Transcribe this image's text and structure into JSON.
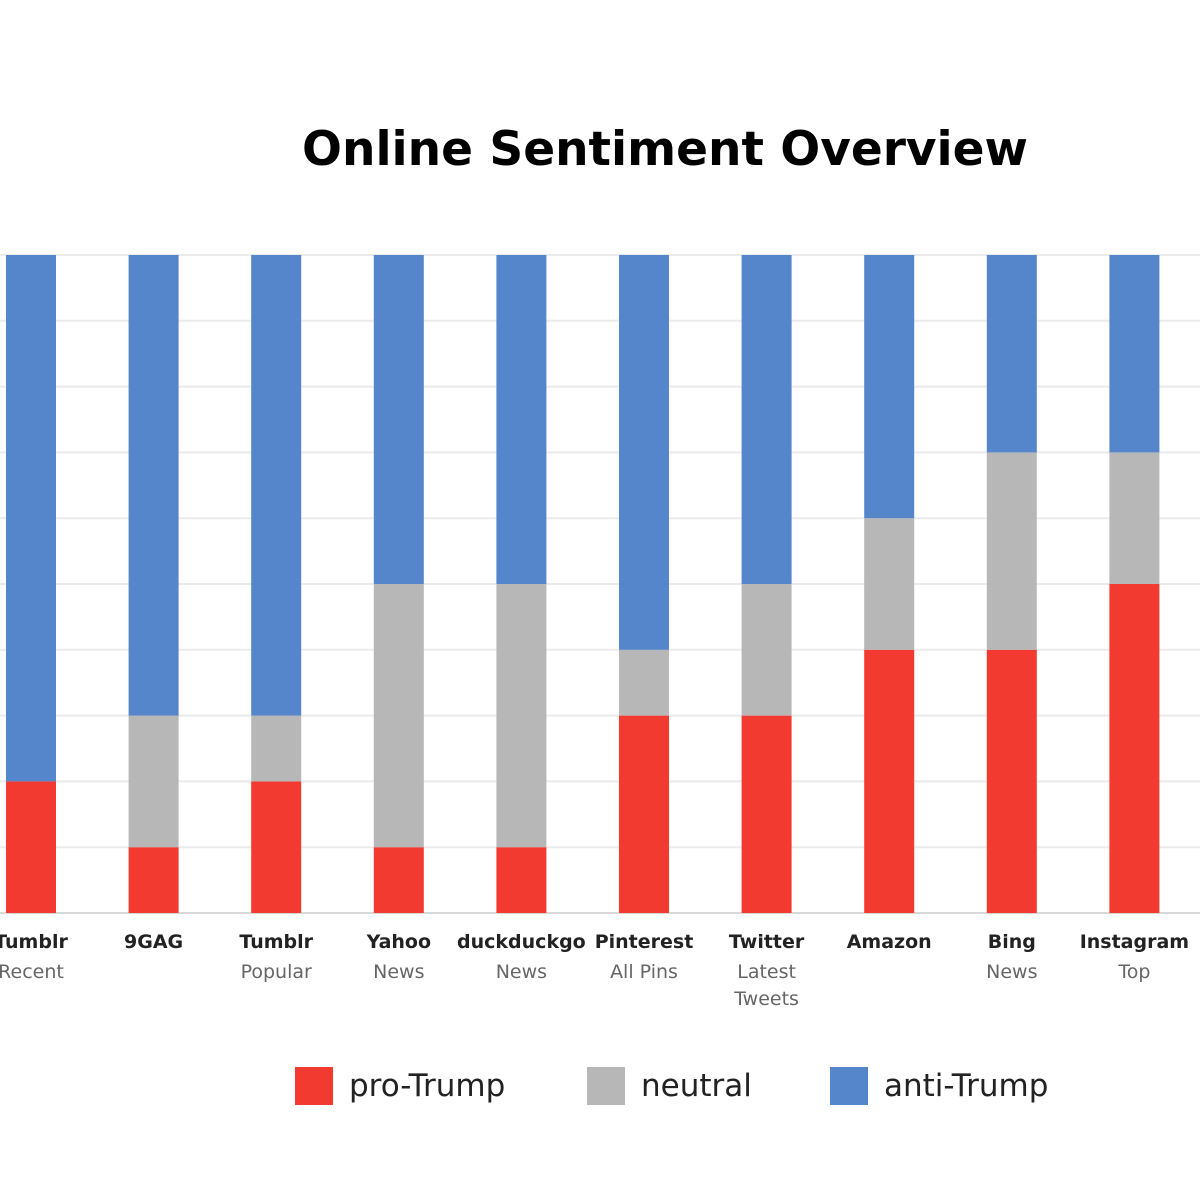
{
  "chart_data": {
    "type": "bar",
    "stacked": true,
    "title": "Online Sentiment Overview",
    "categories": [
      {
        "name": "Tumblr",
        "sub": "Recent"
      },
      {
        "name": "9GAG",
        "sub": ""
      },
      {
        "name": "Tumblr",
        "sub": "Popular"
      },
      {
        "name": "Yahoo",
        "sub": "News"
      },
      {
        "name": "duckduckgo",
        "sub": "News"
      },
      {
        "name": "Pinterest",
        "sub": "All Pins"
      },
      {
        "name": "Twitter",
        "sub": "Latest Tweets"
      },
      {
        "name": "Amazon",
        "sub": ""
      },
      {
        "name": "Bing",
        "sub": "News"
      },
      {
        "name": "Instagram",
        "sub": "Top"
      }
    ],
    "series": [
      {
        "name": "pro-Trump",
        "color": "#f23a30",
        "values": [
          20,
          10,
          20,
          10,
          10,
          30,
          30,
          40,
          40,
          50
        ]
      },
      {
        "name": "neutral",
        "color": "#b7b7b7",
        "values": [
          0,
          20,
          10,
          40,
          40,
          10,
          20,
          20,
          30,
          20
        ]
      },
      {
        "name": "anti-Trump",
        "color": "#5585ca",
        "values": [
          80,
          70,
          70,
          50,
          50,
          60,
          50,
          40,
          30,
          30
        ]
      }
    ],
    "ylim": [
      0,
      100
    ],
    "grid": true,
    "legend_position": "bottom"
  }
}
